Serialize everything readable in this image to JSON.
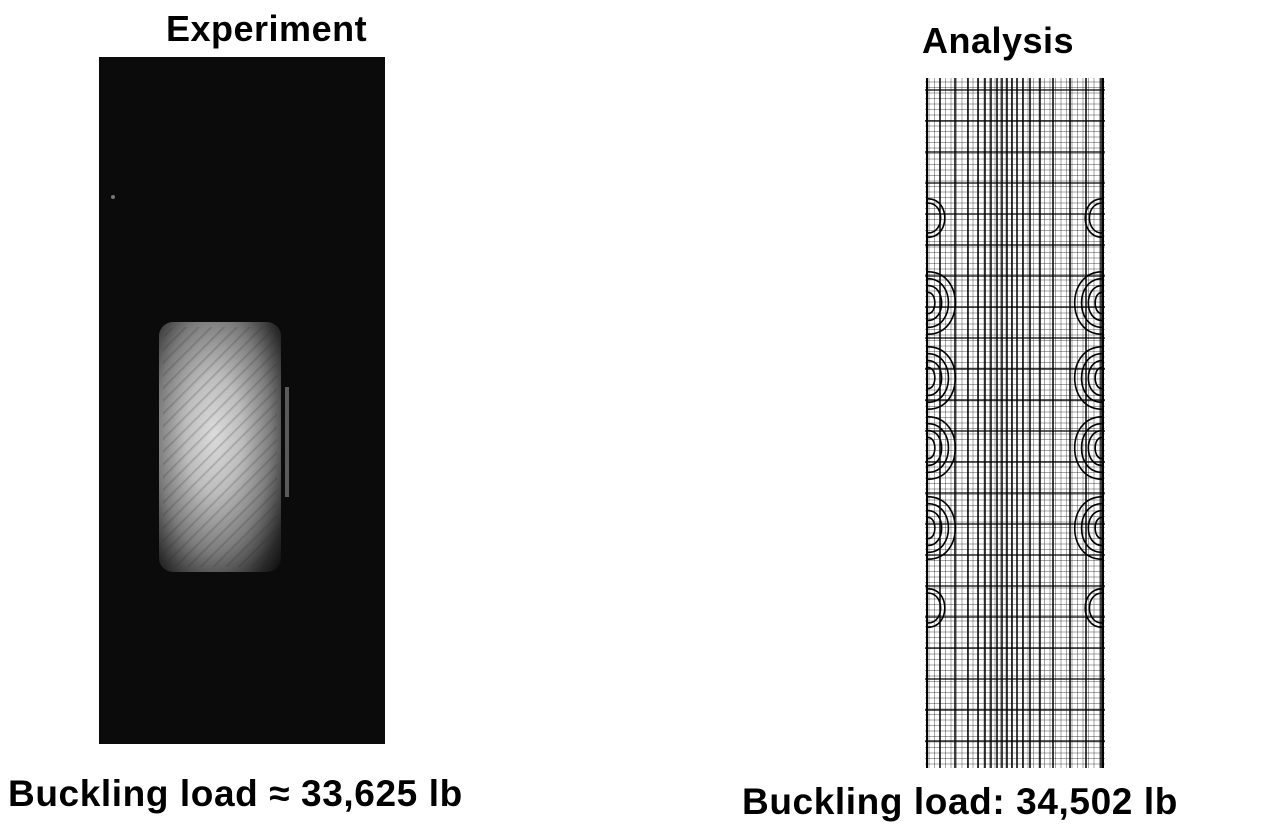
{
  "experiment": {
    "title": "Experiment",
    "caption": "Buckling load ≈ 33,625 lb"
  },
  "analysis": {
    "title": "Analysis",
    "caption": "Buckling load: 34,502 lb"
  }
}
